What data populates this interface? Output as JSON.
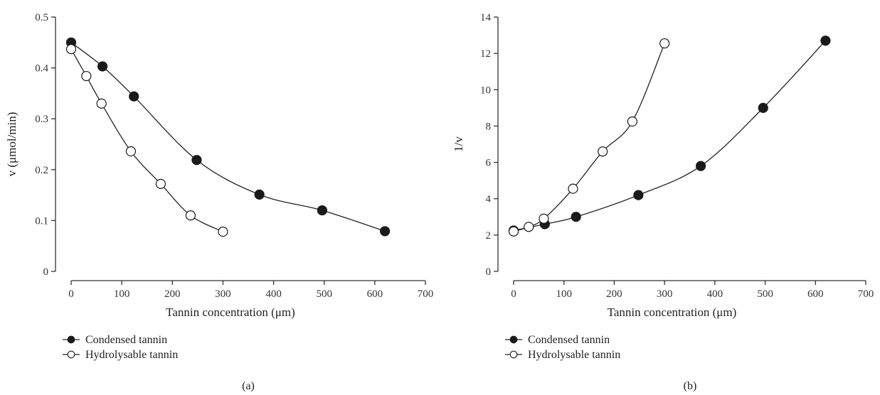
{
  "chart_data": [
    {
      "type": "line",
      "panel_label": "(a)",
      "xlabel": "Tannin concentration (μm)",
      "ylabel": "v (μmol/min)",
      "xlim": [
        0,
        700
      ],
      "ylim": [
        0,
        0.5
      ],
      "xticks": [
        0,
        100,
        200,
        300,
        400,
        500,
        600,
        700
      ],
      "yticks": [
        0,
        0.1,
        0.2,
        0.3,
        0.4,
        0.5
      ],
      "xtick_labels": [
        "0",
        "100",
        "200",
        "300",
        "400",
        "500",
        "600",
        "700"
      ],
      "ytick_labels": [
        "0",
        "0.1",
        "0.2",
        "0.3",
        "0.4",
        "0.5"
      ],
      "legend_position": "bottom-left",
      "series": [
        {
          "name": "Condensed tannin",
          "marker": "filled-circle",
          "x": [
            0,
            62,
            124,
            248,
            372,
            496,
            620
          ],
          "y": [
            0.45,
            0.403,
            0.344,
            0.219,
            0.151,
            0.12,
            0.079
          ]
        },
        {
          "name": "Hydrolysable tannin",
          "marker": "open-circle",
          "x": [
            0,
            30,
            60,
            118,
            177,
            236,
            300
          ],
          "y": [
            0.437,
            0.384,
            0.33,
            0.236,
            0.172,
            0.11,
            0.078
          ]
        }
      ]
    },
    {
      "type": "line",
      "panel_label": "(b)",
      "xlabel": "Tannin concentration (μm)",
      "ylabel": "1/v",
      "xlim": [
        0,
        700
      ],
      "ylim": [
        0,
        14
      ],
      "xticks": [
        0,
        100,
        200,
        300,
        400,
        500,
        600,
        700
      ],
      "yticks": [
        0,
        2,
        4,
        6,
        8,
        10,
        12,
        14
      ],
      "xtick_labels": [
        "0",
        "100",
        "200",
        "300",
        "400",
        "500",
        "600",
        "700"
      ],
      "ytick_labels": [
        "0",
        "2",
        "4",
        "6",
        "8",
        "10",
        "12",
        "14"
      ],
      "legend_position": "bottom-left",
      "series": [
        {
          "name": "Condensed tannin",
          "marker": "filled-circle",
          "x": [
            0,
            62,
            124,
            248,
            372,
            496,
            620
          ],
          "y": [
            2.25,
            2.6,
            3.0,
            4.2,
            5.8,
            9.0,
            12.7
          ]
        },
        {
          "name": "Hydrolysable tannin",
          "marker": "open-circle",
          "x": [
            0,
            30,
            60,
            118,
            177,
            236,
            300
          ],
          "y": [
            2.2,
            2.45,
            2.9,
            4.55,
            6.6,
            8.25,
            12.55
          ]
        }
      ]
    }
  ]
}
